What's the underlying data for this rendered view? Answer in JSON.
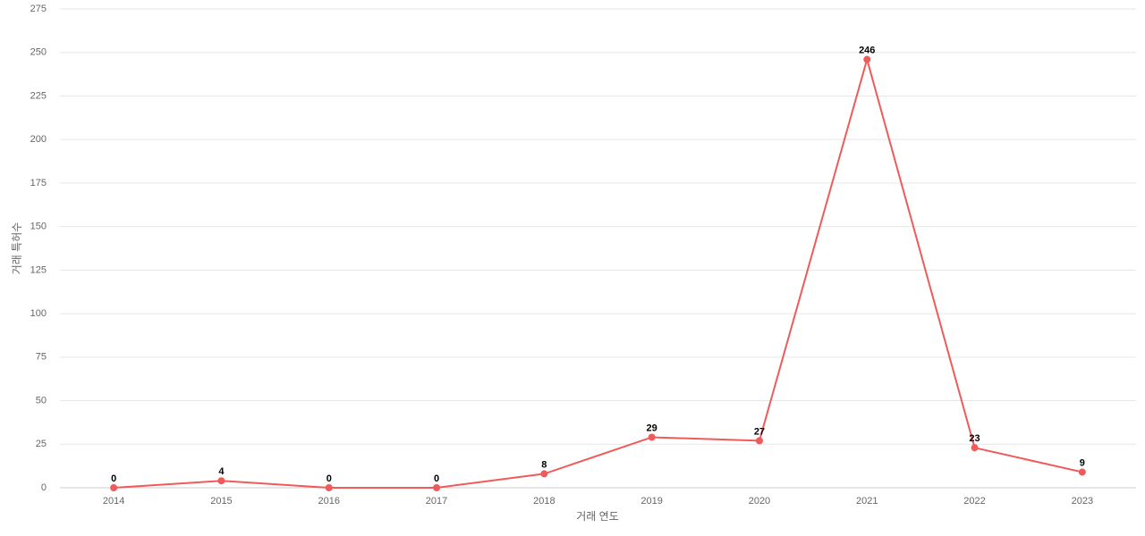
{
  "chart_data": {
    "type": "line",
    "x_label": "거래 연도",
    "y_label": "거래 특허수",
    "categories": [
      "2014",
      "2015",
      "2016",
      "2017",
      "2018",
      "2019",
      "2020",
      "2021",
      "2022",
      "2023"
    ],
    "series": [
      {
        "name": "거래 특허수",
        "color": "#ef5a5a",
        "values": [
          0,
          4,
          0,
          0,
          8,
          29,
          27,
          246,
          23,
          9
        ]
      }
    ],
    "ylim": [
      0,
      275
    ],
    "yticks": [
      0,
      25,
      50,
      75,
      100,
      125,
      150,
      175,
      200,
      225,
      250,
      275
    ],
    "grid": true
  }
}
